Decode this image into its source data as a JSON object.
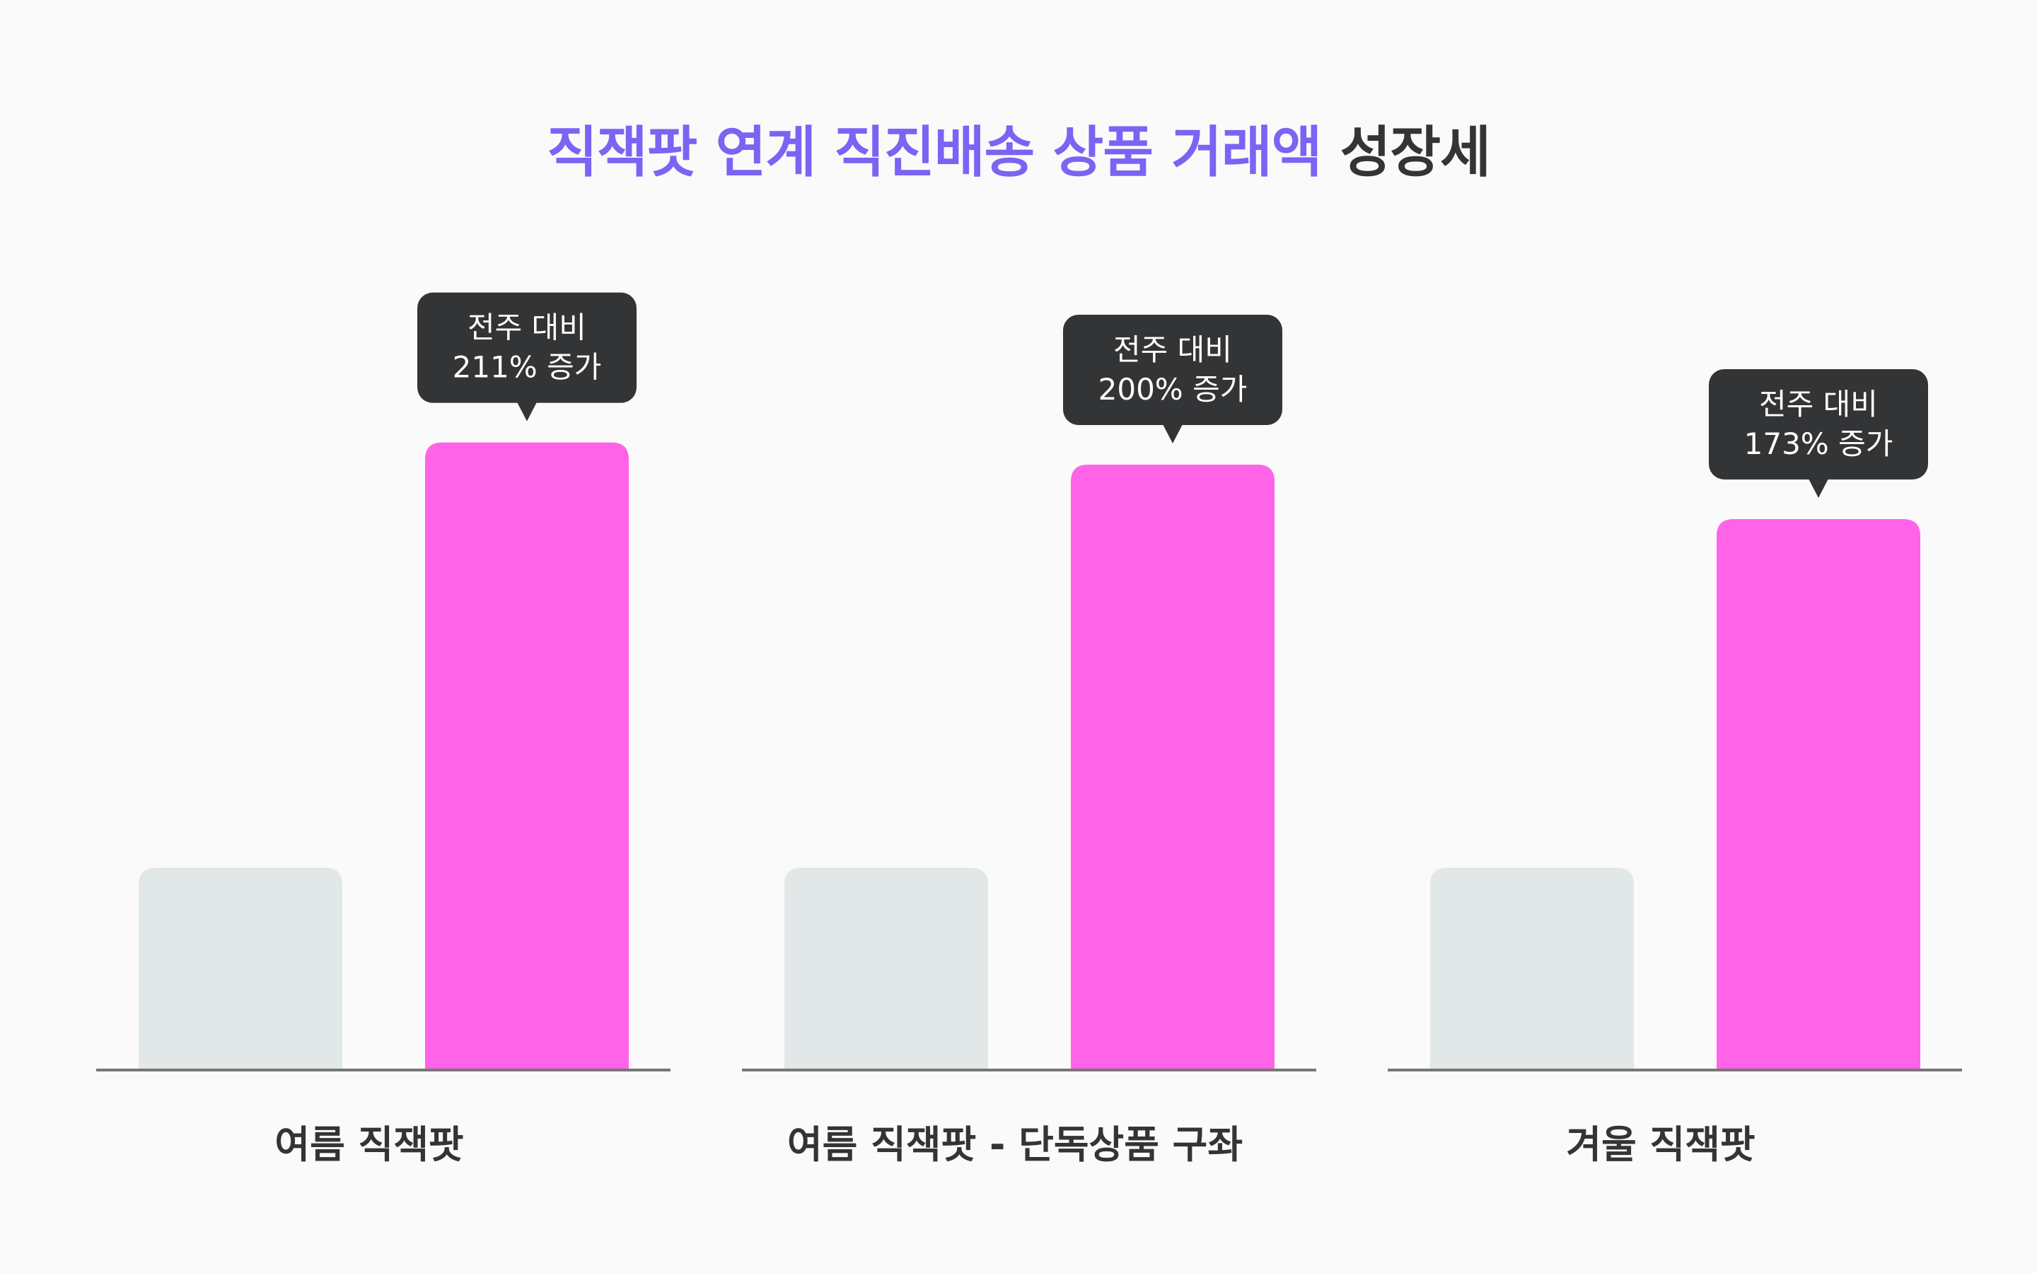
{
  "title": {
    "accent": "직잭팟 연계 직진배송 상품 거래액",
    "rest": "성장세"
  },
  "colors": {
    "accent": "#7b63f4",
    "highlight_bar": "#ff63e8",
    "base_bar": "#e2e7e7",
    "bubble": "#333436",
    "baseline": "#777777"
  },
  "chart_data": {
    "type": "bar",
    "title": "직잭팟 연계 직진배송 상품 거래액 성장세",
    "categories": [
      "여름 직잭팟",
      "여름 직잭팟 - 단독상품 구좌",
      "겨울 직잭팟"
    ],
    "series": [
      {
        "values": [
          100,
          100,
          100
        ]
      },
      {
        "values": [
          311,
          300,
          273
        ]
      }
    ],
    "annotations": [
      {
        "line1": "전주 대비",
        "line2": "211% 증가"
      },
      {
        "line1": "전주 대비",
        "line2": "200% 증가"
      },
      {
        "line1": "전주 대비",
        "line2": "173% 증가"
      }
    ],
    "ylim": [
      0,
      310
    ],
    "grid": false,
    "legend": false
  }
}
